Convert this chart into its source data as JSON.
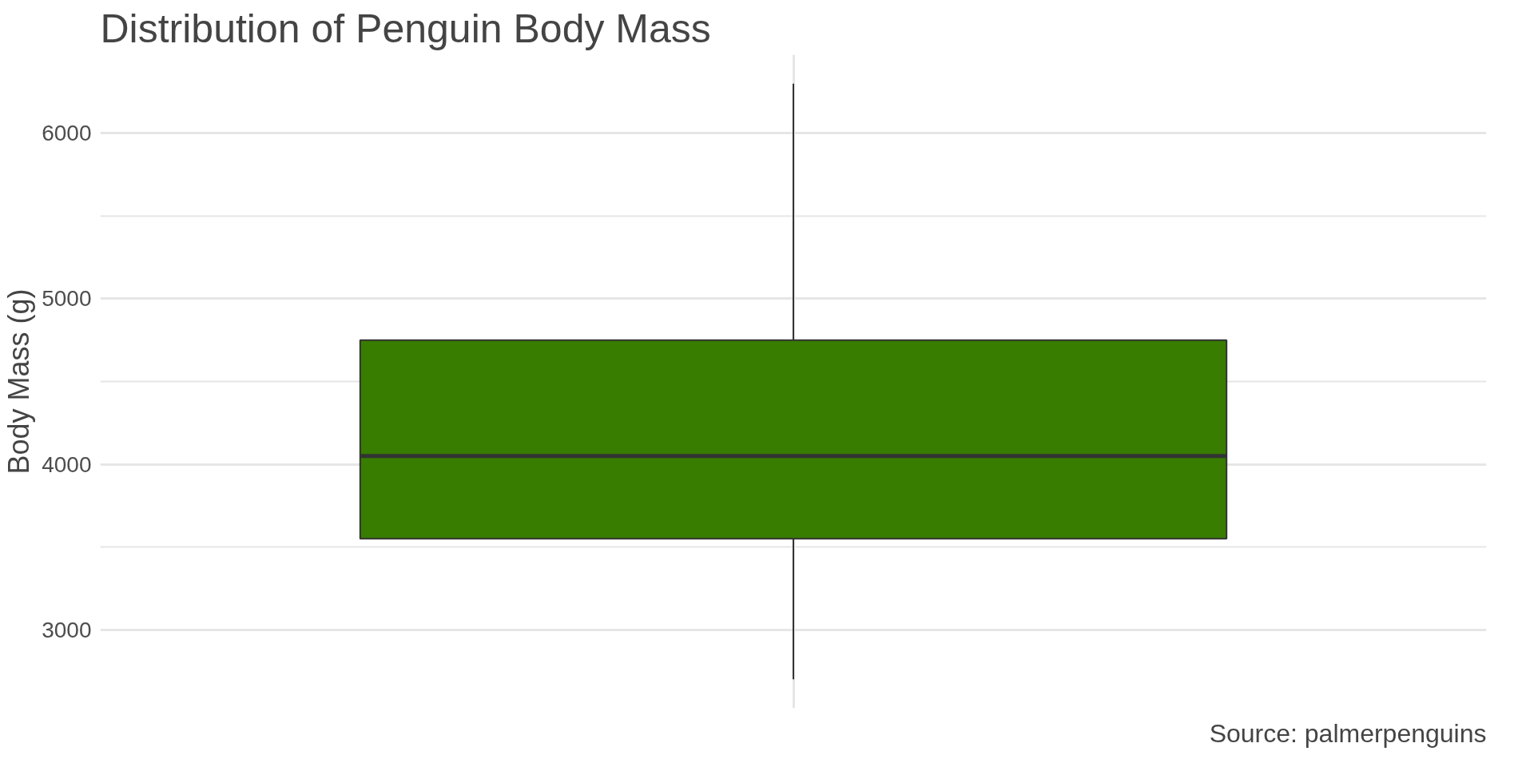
{
  "chart_data": {
    "type": "box",
    "title": "Distribution of Penguin Body Mass",
    "ylabel": "Body Mass (g)",
    "categories": [
      null
    ],
    "series": [
      {
        "color": "#387c00",
        "boxes": [
          {
            "low": 2700,
            "q1": 3550,
            "median": 4050,
            "q3": 4750,
            "high": 6300
          }
        ]
      }
    ],
    "ylim": [
      2525,
      6475
    ],
    "yticks": [
      3000,
      4000,
      5000,
      6000
    ],
    "grid": true,
    "annotations": [
      "Source: palmerpenguins"
    ]
  }
}
